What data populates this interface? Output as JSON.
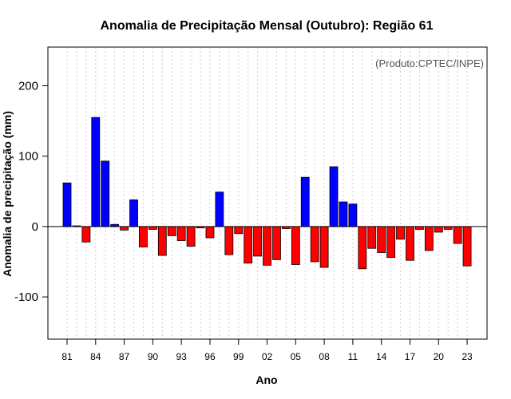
{
  "chart_data": {
    "type": "bar",
    "title": "Anomalia de Precipitação Mensal (Outubro): Região 61",
    "xlabel": "Ano",
    "ylabel": "Anomalia de precipitação (mm)",
    "source_note": "(Produto:CPTEC/INPE)",
    "ylim": [
      -160,
      255
    ],
    "yticks": [
      -100,
      0,
      100,
      200
    ],
    "ytick_labels": [
      "-100",
      "0",
      "100",
      "200"
    ],
    "years": [
      1981,
      1982,
      1983,
      1984,
      1985,
      1986,
      1987,
      1988,
      1989,
      1990,
      1991,
      1992,
      1993,
      1994,
      1995,
      1996,
      1997,
      1998,
      1999,
      2000,
      2001,
      2002,
      2003,
      2004,
      2005,
      2006,
      2007,
      2008,
      2009,
      2010,
      2011,
      2012,
      2013,
      2014,
      2015,
      2016,
      2017,
      2018,
      2019,
      2020,
      2021,
      2022,
      2023
    ],
    "values": [
      62,
      1,
      -22,
      155,
      93,
      3,
      -5,
      38,
      -29,
      -4,
      -41,
      -13,
      -20,
      -28,
      -2,
      -16,
      49,
      -40,
      -10,
      -52,
      -42,
      -55,
      -47,
      -3,
      -54,
      70,
      -50,
      -58,
      85,
      35,
      32,
      -60,
      -31,
      -37,
      -44,
      -18,
      -48,
      -4,
      -34,
      -8,
      -4,
      -24,
      -56
    ],
    "xtick_labels": [
      "81",
      "84",
      "87",
      "90",
      "93",
      "96",
      "99",
      "02",
      "05",
      "08",
      "11",
      "14",
      "17",
      "20",
      "23"
    ],
    "grid": true,
    "colors": {
      "positive": "#0000ff",
      "negative": "#ff0000",
      "grid": "#cfcfcf",
      "outline": "#000000"
    }
  }
}
